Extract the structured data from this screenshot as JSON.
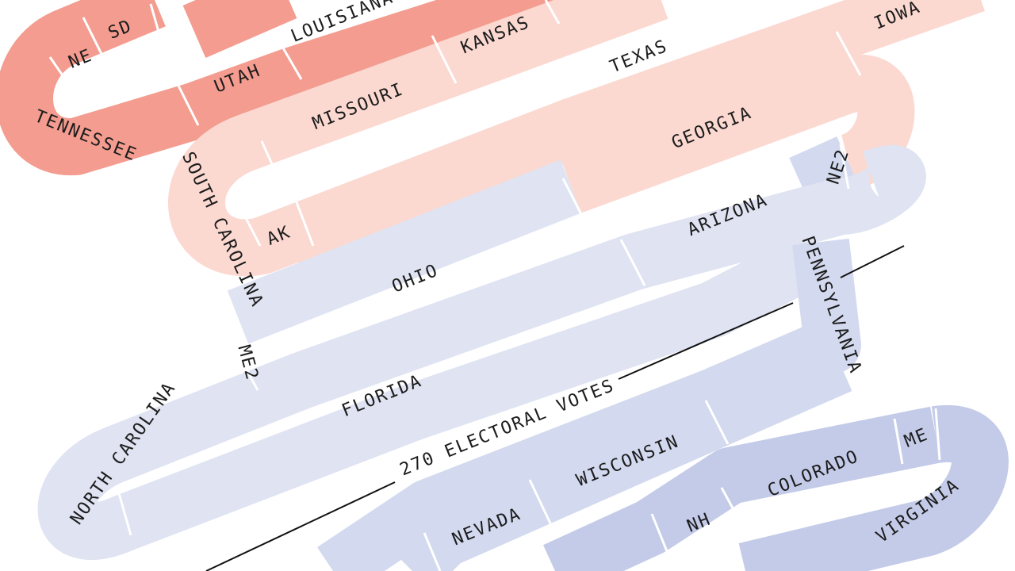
{
  "colors": {
    "red_strong": "#f39c8f",
    "red_mid": "#f8c2b7",
    "red_light": "#fbd9d1",
    "blue_light": "#dfe3f2",
    "blue_mid": "#d3d9ee",
    "blue_strong": "#c4cbe8",
    "divider": "#ffffff",
    "text": "#1c1c1c",
    "threshold_line": "#111111"
  },
  "threshold": {
    "label": "270 ELECTORAL VOTES"
  },
  "states": [
    {
      "label": "SD",
      "color": "red_strong"
    },
    {
      "label": "NE",
      "color": "red_strong"
    },
    {
      "label": "TENNESSEE",
      "color": "red_strong"
    },
    {
      "label": "UTAH",
      "color": "red_strong"
    },
    {
      "label": "LOUISIANA",
      "color": "red_mid"
    },
    {
      "label": "KANSAS",
      "color": "red_light"
    },
    {
      "label": "MISSOURI",
      "color": "red_light"
    },
    {
      "label": "SOUTH CAROLINA",
      "color": "red_light"
    },
    {
      "label": "AK",
      "color": "red_light"
    },
    {
      "label": "TEXAS",
      "color": "red_light"
    },
    {
      "label": "IOWA",
      "color": "red_light"
    },
    {
      "label": "GEORGIA",
      "color": "red_light"
    },
    {
      "label": "NE2",
      "color": "blue_mid"
    },
    {
      "label": "ARIZONA",
      "color": "blue_light"
    },
    {
      "label": "OHIO",
      "color": "blue_light"
    },
    {
      "label": "ME2",
      "color": "blue_light"
    },
    {
      "label": "NORTH CAROLINA",
      "color": "blue_light"
    },
    {
      "label": "FLORIDA",
      "color": "blue_light"
    },
    {
      "label": "PENNSYLVANIA",
      "color": "blue_mid"
    },
    {
      "label": "WISCONSIN",
      "color": "blue_mid"
    },
    {
      "label": "NEVADA",
      "color": "blue_mid"
    },
    {
      "label": "NH",
      "color": "blue_strong"
    },
    {
      "label": "COLORADO",
      "color": "blue_strong"
    },
    {
      "label": "ME",
      "color": "blue_strong"
    },
    {
      "label": "VIRGINIA",
      "color": "blue_strong"
    }
  ]
}
